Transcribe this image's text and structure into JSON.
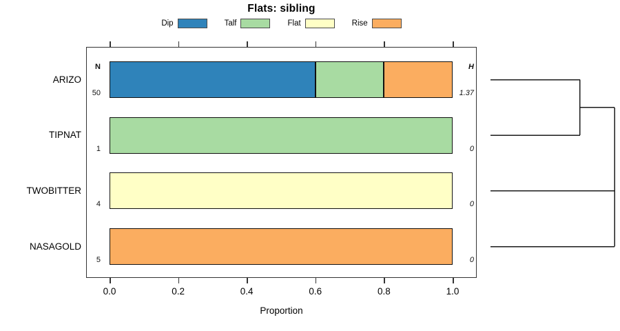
{
  "title": "Flats: sibling",
  "legend": {
    "items": [
      {
        "label": "Dip",
        "color": "#2F83BA"
      },
      {
        "label": "Talf",
        "color": "#A8DBA2"
      },
      {
        "label": "Flat",
        "color": "#FFFFC6"
      },
      {
        "label": "Rise",
        "color": "#FBAD60"
      }
    ]
  },
  "chart_data": {
    "type": "bar",
    "orientation": "horizontal",
    "stacked": true,
    "title": "Flats: sibling",
    "xlabel": "Proportion",
    "xlim": [
      0,
      1
    ],
    "x_ticks": [
      {
        "value": 0.0,
        "label": "0.0"
      },
      {
        "value": 0.2,
        "label": "0.2"
      },
      {
        "value": 0.4,
        "label": "0.4"
      },
      {
        "value": 0.6,
        "label": "0.6"
      },
      {
        "value": 0.8,
        "label": "0.8"
      },
      {
        "value": 1.0,
        "label": "1.0"
      }
    ],
    "categories": [
      "Dip",
      "Talf",
      "Flat",
      "Rise"
    ],
    "n_header": "N",
    "h_header": "H",
    "rows": [
      {
        "label": "ARIZO",
        "n": "50",
        "h": "1.37",
        "segments": [
          {
            "category": "Dip",
            "value": 0.6
          },
          {
            "category": "Talf",
            "value": 0.2
          },
          {
            "category": "Rise",
            "value": 0.2
          }
        ]
      },
      {
        "label": "TIPNAT",
        "n": "1",
        "h": "0",
        "segments": [
          {
            "category": "Talf",
            "value": 1.0
          }
        ]
      },
      {
        "label": "TWOBITTER",
        "n": "4",
        "h": "0",
        "segments": [
          {
            "category": "Flat",
            "value": 1.0
          }
        ]
      },
      {
        "label": "NASAGOLD",
        "n": "5",
        "h": "0",
        "segments": [
          {
            "category": "Rise",
            "value": 1.0
          }
        ]
      }
    ],
    "dendrogram": {
      "note": "x: 0=leaf end, 1=root height; y: row index units",
      "segments": [
        {
          "x1": 0,
          "y1": 0,
          "x2": 0.722,
          "y2": 0
        },
        {
          "x1": 0,
          "y1": 1,
          "x2": 0.722,
          "y2": 1
        },
        {
          "x1": 0.722,
          "y1": 0,
          "x2": 0.722,
          "y2": 1
        },
        {
          "x1": 0.722,
          "y1": 0.5,
          "x2": 1,
          "y2": 0.5
        },
        {
          "x1": 1,
          "y1": 0.5,
          "x2": 1,
          "y2": 3
        },
        {
          "x1": 0,
          "y1": 2,
          "x2": 1,
          "y2": 2
        },
        {
          "x1": 0,
          "y1": 3,
          "x2": 1,
          "y2": 3
        }
      ]
    }
  }
}
